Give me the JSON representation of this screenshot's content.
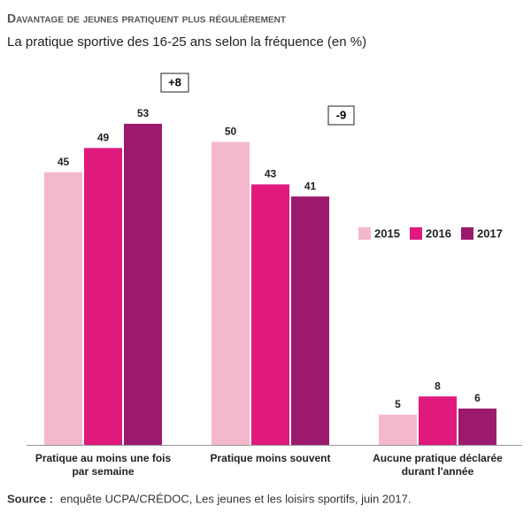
{
  "chart_data": {
    "type": "bar",
    "title": "Davantage de jeunes pratiquent plus régulièrement",
    "subtitle": "La pratique sportive des 16-25 ans selon la fréquence (en %)",
    "categories": [
      "Pratique au moins une fois par semaine",
      "Pratique moins souvent",
      "Aucune pratique déclarée durant l'année"
    ],
    "series": [
      {
        "name": "2015",
        "color": "#f4b8cc",
        "values": [
          45,
          50,
          5
        ]
      },
      {
        "name": "2016",
        "color": "#e0197d",
        "values": [
          49,
          43,
          8
        ]
      },
      {
        "name": "2017",
        "color": "#9b1a6e",
        "values": [
          53,
          41,
          6
        ]
      }
    ],
    "annotations": [
      "+8",
      "-9"
    ],
    "source_label": "Source :",
    "source": "enquête UCPA/CRÉDOC, Les jeunes et les loisirs sportifs, juin 2017."
  }
}
